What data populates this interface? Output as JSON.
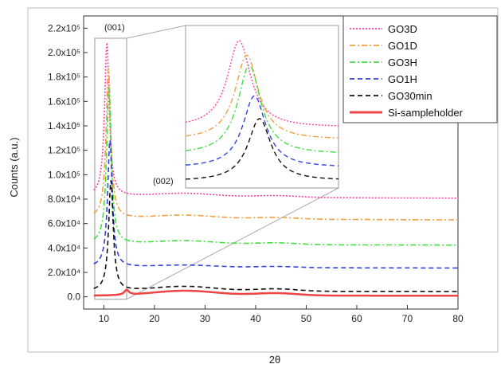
{
  "chart_data": {
    "type": "line",
    "xlabel": "2θ",
    "ylabel": "Counts (a.u.)",
    "xlim": [
      6,
      80
    ],
    "ylim": [
      -10000,
      230000
    ],
    "x_ticks": [
      10,
      20,
      30,
      40,
      50,
      60,
      70,
      80
    ],
    "y_ticks": [
      {
        "value": 0,
        "label": "0.0"
      },
      {
        "value": 20000,
        "label": "2.0x10⁴"
      },
      {
        "value": 40000,
        "label": "4.0x10⁴"
      },
      {
        "value": 60000,
        "label": "6.0x10⁴"
      },
      {
        "value": 80000,
        "label": "8.0x10⁴"
      },
      {
        "value": 100000,
        "label": "1.0x10⁵"
      },
      {
        "value": 120000,
        "label": "1.2x10⁵"
      },
      {
        "value": 140000,
        "label": "1.4x10⁵"
      },
      {
        "value": 160000,
        "label": "1.6x10⁵"
      },
      {
        "value": 180000,
        "label": "1.8x10⁵"
      },
      {
        "value": 200000,
        "label": "2.0x10⁵"
      },
      {
        "value": 220000,
        "label": "2.2x10⁵"
      }
    ],
    "legend_position": "top-right",
    "annotations": [
      "(001)",
      "(002)"
    ],
    "grid": false,
    "series": [
      {
        "name": "GO3D",
        "color": "#ff3fa0",
        "dash": "dot",
        "baseline": 82000,
        "peak_x": 10.6,
        "peak_top": 208000,
        "hump": 3000
      },
      {
        "name": "GO1D",
        "color": "#f0a040",
        "dash": "dashdot",
        "baseline": 64000,
        "peak_x": 10.9,
        "peak_top": 187000,
        "hump": 3000
      },
      {
        "name": "GO3H",
        "color": "#44dd44",
        "dash": "dashdot",
        "baseline": 43000,
        "peak_x": 11.0,
        "peak_top": 172000,
        "hump": 3000
      },
      {
        "name": "GO1H",
        "color": "#3344dd",
        "dash": "dash",
        "baseline": 24000,
        "peak_x": 11.2,
        "peak_top": 128000,
        "hump": 2000
      },
      {
        "name": "GO30min",
        "color": "#111111",
        "dash": "dash",
        "baseline": 4500,
        "peak_x": 11.4,
        "peak_top": 95000,
        "hump": 4000
      },
      {
        "name": "Si-sampleholder",
        "color": "#ee4444",
        "dash": "solid",
        "baseline": 1000,
        "peak_x": 14.5,
        "peak_top": 5000,
        "hump": 4000
      }
    ]
  }
}
